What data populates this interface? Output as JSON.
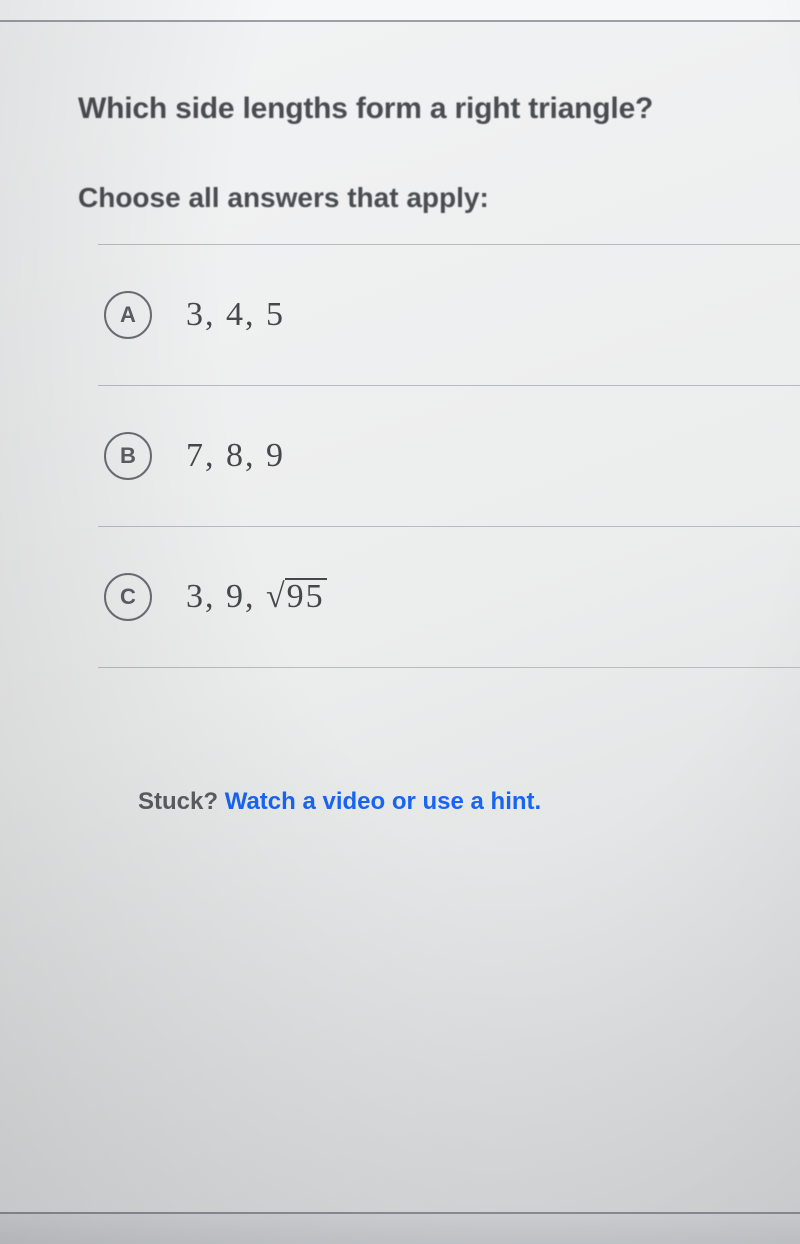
{
  "question": "Which side lengths form a right triangle?",
  "instruction": "Choose all answers that apply:",
  "choices": [
    {
      "letter": "A",
      "text": "3, 4, 5"
    },
    {
      "letter": "B",
      "text": "7, 8, 9"
    },
    {
      "letter": "C",
      "text": "3, 9, √95",
      "has_sqrt": true,
      "sqrt_pre": "3, 9, ",
      "sqrt_radicand": "95"
    }
  ],
  "hint": {
    "stuck_label": "Stuck? ",
    "link_label": "Watch a video or use a hint.",
    "link_color": "#1865f2"
  },
  "colors": {
    "background": "#eceded",
    "text": "#4a4d50",
    "rule": "#b7bcc2",
    "circle_border": "#6a6f74"
  }
}
